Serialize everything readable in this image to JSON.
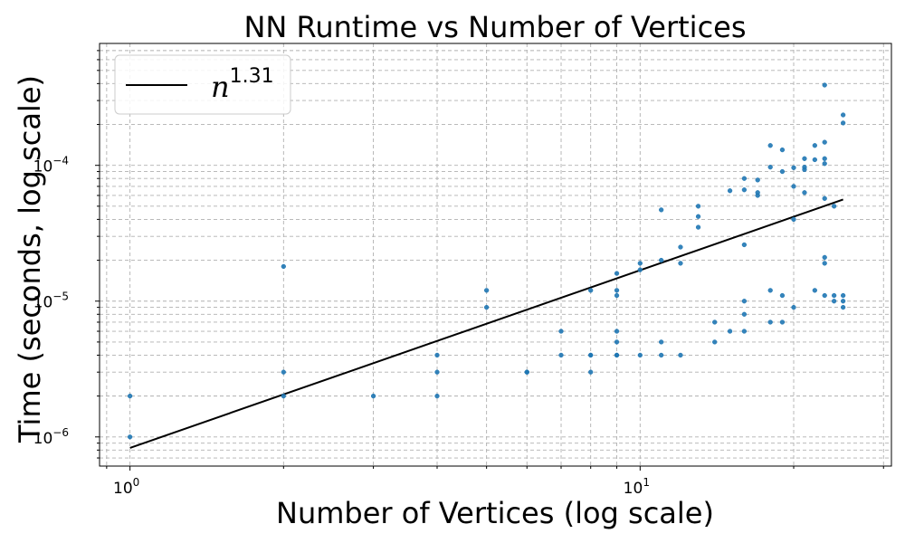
{
  "chart_data": {
    "type": "scatter",
    "title": "NN Runtime vs Number of Vertices",
    "xlabel": "Number of Vertices (log scale)",
    "ylabel": "Time (seconds, log scale)",
    "xscale": "log",
    "yscale": "log",
    "xlim": [
      0.8716,
      31.09
    ],
    "ylim": [
      6.1e-07,
      0.00079
    ],
    "x_ticks": [
      {
        "value": 1,
        "base": "10",
        "exp": "0"
      },
      {
        "value": 10,
        "base": "10",
        "exp": "1"
      }
    ],
    "y_ticks": [
      {
        "value": 1e-06,
        "base": "10",
        "exp": "−6"
      },
      {
        "value": 1e-05,
        "base": "10",
        "exp": "−5"
      },
      {
        "value": 0.0001,
        "base": "10",
        "exp": "−4"
      }
    ],
    "grid": true,
    "legend": {
      "position": "top-left",
      "entries": [
        {
          "label_base": "n",
          "label_exp": "1.31",
          "color": "#000000",
          "kind": "line"
        }
      ]
    },
    "series": [
      {
        "kind": "scatter",
        "color": "#1f77b4",
        "points": [
          [
            1,
            1e-06
          ],
          [
            1,
            2e-06
          ],
          [
            2,
            2e-06
          ],
          [
            2,
            3e-06
          ],
          [
            2,
            1.8e-05
          ],
          [
            3,
            2e-06
          ],
          [
            4,
            2e-06
          ],
          [
            4,
            3e-06
          ],
          [
            4,
            4e-06
          ],
          [
            5,
            9e-06
          ],
          [
            5,
            1.2e-05
          ],
          [
            6,
            3e-06
          ],
          [
            6,
            3e-06
          ],
          [
            7,
            4e-06
          ],
          [
            7,
            6e-06
          ],
          [
            8,
            3e-06
          ],
          [
            8,
            4e-06
          ],
          [
            8,
            4e-06
          ],
          [
            8,
            1.2e-05
          ],
          [
            9,
            4e-06
          ],
          [
            9,
            4e-06
          ],
          [
            9,
            5e-06
          ],
          [
            9,
            6e-06
          ],
          [
            9,
            1.1e-05
          ],
          [
            9,
            1.2e-05
          ],
          [
            9,
            1.6e-05
          ],
          [
            10,
            4e-06
          ],
          [
            10,
            1.7e-05
          ],
          [
            10,
            1.9e-05
          ],
          [
            11,
            4e-06
          ],
          [
            11,
            5e-06
          ],
          [
            11,
            2e-05
          ],
          [
            11,
            4.7e-05
          ],
          [
            12,
            4e-06
          ],
          [
            12,
            1.9e-05
          ],
          [
            12,
            2.5e-05
          ],
          [
            13,
            3.5e-05
          ],
          [
            13,
            4.2e-05
          ],
          [
            13,
            5e-05
          ],
          [
            14,
            5e-06
          ],
          [
            14,
            7e-06
          ],
          [
            15,
            6e-06
          ],
          [
            15,
            6.5e-05
          ],
          [
            16,
            6e-06
          ],
          [
            16,
            8e-06
          ],
          [
            16,
            1e-05
          ],
          [
            16,
            2.6e-05
          ],
          [
            16,
            6.6e-05
          ],
          [
            16,
            8e-05
          ],
          [
            17,
            6e-05
          ],
          [
            17,
            6.3e-05
          ],
          [
            17,
            7.8e-05
          ],
          [
            18,
            7e-06
          ],
          [
            18,
            1.2e-05
          ],
          [
            18,
            9.7e-05
          ],
          [
            18,
            0.00014
          ],
          [
            19,
            7e-06
          ],
          [
            19,
            1.1e-05
          ],
          [
            19,
            9e-05
          ],
          [
            19,
            0.00013
          ],
          [
            20,
            9e-06
          ],
          [
            20,
            4e-05
          ],
          [
            20,
            7e-05
          ],
          [
            20,
            9.6e-05
          ],
          [
            21,
            6.3e-05
          ],
          [
            21,
            9.3e-05
          ],
          [
            21,
            9.7e-05
          ],
          [
            21,
            0.000112
          ],
          [
            22,
            1.2e-05
          ],
          [
            22,
            0.00011
          ],
          [
            22,
            0.00014
          ],
          [
            23,
            1.1e-05
          ],
          [
            23,
            1.9e-05
          ],
          [
            23,
            2.1e-05
          ],
          [
            23,
            5.7e-05
          ],
          [
            23,
            0.000103
          ],
          [
            23,
            0.000112
          ],
          [
            23,
            0.000148
          ],
          [
            23,
            0.00039
          ],
          [
            24,
            1e-05
          ],
          [
            24,
            1.1e-05
          ],
          [
            24,
            5e-05
          ],
          [
            25,
            9e-06
          ],
          [
            25,
            1e-05
          ],
          [
            25,
            1.1e-05
          ],
          [
            25,
            0.000205
          ],
          [
            25,
            0.000235
          ]
        ]
      },
      {
        "kind": "line",
        "name": "n^1.31",
        "color": "#000000",
        "x": [
          1,
          25
        ],
        "y": [
          8.3e-07,
          5.6e-05
        ]
      }
    ]
  }
}
